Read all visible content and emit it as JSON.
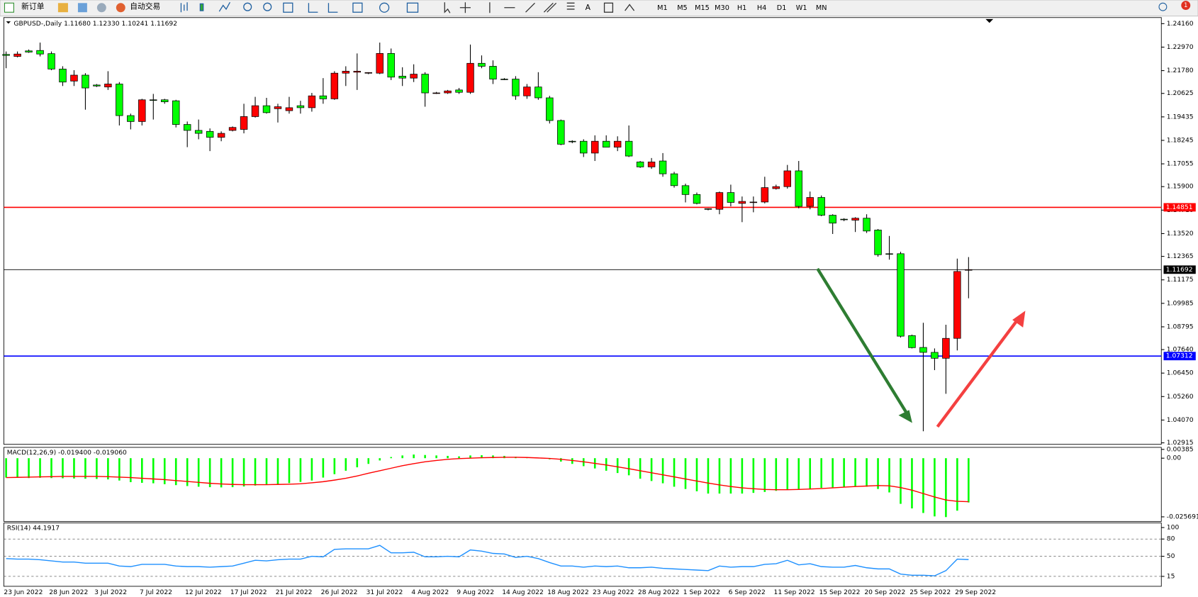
{
  "toolbar": {
    "new_order": "新订单",
    "auto_trading": "自动交易",
    "timeframes": [
      "M1",
      "M5",
      "M15",
      "M30",
      "H1",
      "H4",
      "D1",
      "W1",
      "MN"
    ],
    "badge": 1
  },
  "chart_data": [
    {
      "type": "candlestick",
      "title": "GBPUSD-,Daily 1.11680 1.12330 1.10241 1.11692",
      "categories": [
        "23 Jun 2022",
        null,
        null,
        null,
        "28 Jun 2022",
        null,
        null,
        null,
        "3 Jul 2022",
        null,
        null,
        null,
        "7 Jul 2022",
        null,
        null,
        null,
        "12 Jul 2022",
        null,
        null,
        null,
        "17 Jul 2022",
        null,
        null,
        null,
        "21 Jul 2022",
        null,
        null,
        null,
        "26 Jul 2022",
        null,
        null,
        null,
        "31 Jul 2022",
        null,
        null,
        null,
        "4 Aug 2022",
        null,
        null,
        null,
        "9 Aug 2022",
        null,
        null,
        null,
        "14 Aug 2022",
        null,
        null,
        null,
        "18 Aug 2022",
        null,
        null,
        null,
        "23 Aug 2022",
        null,
        null,
        null,
        "28 Aug 2022",
        null,
        null,
        null,
        "1 Sep 2022",
        null,
        null,
        null,
        "6 Sep 2022",
        null,
        null,
        null,
        "11 Sep 2022",
        null,
        null,
        null,
        "15 Sep 2022",
        null,
        null,
        null,
        "20 Sep 2022",
        null,
        null,
        null,
        "25 Sep 2022",
        null,
        null,
        null,
        "29 Sep 2022",
        null
      ],
      "open": [
        1.226,
        1.225,
        1.2278,
        1.228,
        1.2264,
        1.2186,
        1.2125,
        1.2155,
        1.2105,
        1.2095,
        1.211,
        1.195,
        1.192,
        1.203,
        1.203,
        1.2025,
        1.1905,
        1.1875,
        1.187,
        1.184,
        1.1875,
        1.188,
        1.1945,
        1.2,
        1.1985,
        1.1975,
        1.2,
        1.199,
        1.205,
        1.2035,
        1.2165,
        1.217,
        1.2165,
        1.2165,
        1.2265,
        1.215,
        1.214,
        1.216,
        1.2063,
        1.2065,
        1.208,
        1.2068,
        1.2215,
        1.22,
        1.2135,
        1.2135,
        1.205,
        1.2095,
        1.204,
        1.1925,
        1.182,
        1.182,
        1.176,
        1.182,
        1.179,
        1.182,
        1.1715,
        1.169,
        1.172,
        1.1655,
        1.1595,
        1.155,
        1.1478,
        1.1475,
        1.156,
        1.1505,
        1.151,
        1.1512,
        1.158,
        1.159,
        1.167,
        1.149,
        1.1535,
        1.1445,
        1.1425,
        1.142,
        1.143,
        1.137,
        1.125,
        1.125,
        1.0835,
        1.0775,
        1.075,
        1.072,
        1.0821,
        1.1168
      ],
      "high": [
        1.2275,
        1.2275,
        1.2285,
        1.232,
        1.2275,
        1.22,
        1.218,
        1.2165,
        1.211,
        1.2175,
        1.212,
        1.196,
        1.2035,
        1.206,
        1.2035,
        1.203,
        1.192,
        1.193,
        1.1885,
        1.187,
        1.1895,
        1.201,
        1.2045,
        1.204,
        1.201,
        1.2045,
        1.2025,
        1.2065,
        1.214,
        1.2175,
        1.22,
        1.2265,
        1.217,
        1.232,
        1.229,
        1.2195,
        1.221,
        1.217,
        1.207,
        1.208,
        1.209,
        1.231,
        1.2255,
        1.223,
        1.214,
        1.215,
        1.211,
        1.217,
        1.205,
        1.193,
        1.1825,
        1.183,
        1.185,
        1.185,
        1.1845,
        1.19,
        1.172,
        1.1735,
        1.176,
        1.1665,
        1.1605,
        1.156,
        1.148,
        1.1565,
        1.16,
        1.154,
        1.154,
        1.164,
        1.16,
        1.17,
        1.172,
        1.1565,
        1.1545,
        1.145,
        1.143,
        1.1435,
        1.145,
        1.1375,
        1.134,
        1.126,
        1.084,
        1.09,
        1.077,
        1.089,
        1.1225,
        1.1233
      ],
      "low": [
        1.219,
        1.2245,
        1.2268,
        1.225,
        1.218,
        1.21,
        1.21,
        1.198,
        1.2095,
        1.208,
        1.19,
        1.188,
        1.19,
        1.193,
        1.201,
        1.189,
        1.179,
        1.183,
        1.177,
        1.182,
        1.187,
        1.186,
        1.194,
        1.196,
        1.1915,
        1.196,
        1.196,
        1.197,
        1.201,
        1.203,
        1.21,
        1.208,
        1.216,
        1.216,
        1.213,
        1.21,
        1.212,
        1.1995,
        1.206,
        1.206,
        1.206,
        1.206,
        1.219,
        1.211,
        1.213,
        1.203,
        1.2035,
        1.203,
        1.191,
        1.18,
        1.181,
        1.174,
        1.172,
        1.179,
        1.177,
        1.174,
        1.1685,
        1.168,
        1.164,
        1.1585,
        1.151,
        1.15,
        1.147,
        1.145,
        1.149,
        1.141,
        1.146,
        1.1505,
        1.1575,
        1.158,
        1.148,
        1.1475,
        1.144,
        1.135,
        1.1415,
        1.136,
        1.1355,
        1.1235,
        1.122,
        1.0825,
        1.077,
        1.035,
        1.066,
        1.054,
        1.076,
        1.10241
      ],
      "close": [
        1.2255,
        1.2262,
        1.2272,
        1.2262,
        1.2186,
        1.212,
        1.2155,
        1.209,
        1.21,
        1.211,
        1.195,
        1.192,
        1.203,
        1.2028,
        1.202,
        1.1905,
        1.1875,
        1.186,
        1.184,
        1.186,
        1.189,
        1.1945,
        1.2,
        1.1965,
        1.1995,
        1.199,
        1.199,
        1.205,
        1.2035,
        1.2165,
        1.2175,
        1.2175,
        1.2168,
        1.2265,
        1.2145,
        1.214,
        1.216,
        1.2065,
        1.2065,
        1.2075,
        1.2068,
        1.2215,
        1.22,
        1.2135,
        1.2133,
        1.205,
        1.2095,
        1.204,
        1.1925,
        1.1805,
        1.1818,
        1.176,
        1.182,
        1.179,
        1.182,
        1.1745,
        1.169,
        1.1715,
        1.1655,
        1.1595,
        1.155,
        1.1505,
        1.1475,
        1.156,
        1.151,
        1.1515,
        1.1512,
        1.1585,
        1.159,
        1.167,
        1.149,
        1.1535,
        1.1445,
        1.1405,
        1.1423,
        1.143,
        1.1365,
        1.1245,
        1.1248,
        1.0832,
        1.0774,
        1.075,
        1.072,
        1.0821,
        1.116,
        1.11692
      ],
      "up_color": "#ff0000",
      "down_color": "#00ff00",
      "ylim": [
        1.0284,
        1.2443
      ],
      "yticks": [
        {
          "value": 1.2416,
          "label": "1.24160"
        },
        {
          "value": 1.2297,
          "label": "1.22970"
        },
        {
          "value": 1.2178,
          "label": "1.21780"
        },
        {
          "value": 1.20625,
          "label": "1.20625"
        },
        {
          "value": 1.19435,
          "label": "1.19435"
        },
        {
          "value": 1.18245,
          "label": "1.18245"
        },
        {
          "value": 1.17055,
          "label": "1.17055"
        },
        {
          "value": 1.159,
          "label": "1.15900"
        },
        {
          "value": 1.1471,
          "label": "1.14710"
        },
        {
          "value": 1.1352,
          "label": "1.13520"
        },
        {
          "value": 1.12365,
          "label": "1.12365"
        },
        {
          "value": 1.11175,
          "label": "1.11175"
        },
        {
          "value": 1.09985,
          "label": "1.09985"
        },
        {
          "value": 1.08795,
          "label": "1.08795"
        },
        {
          "value": 1.0764,
          "label": "1.07640"
        },
        {
          "value": 1.0645,
          "label": "1.06450"
        },
        {
          "value": 1.0526,
          "label": "1.05260"
        },
        {
          "value": 1.0407,
          "label": "1.04070"
        },
        {
          "value": 1.02915,
          "label": "1.02915"
        }
      ],
      "levels": [
        {
          "value": 1.14851,
          "label": "1.14851",
          "color": "#ff0000"
        },
        {
          "value": 1.07312,
          "label": "1.07312",
          "color": "#0000ff"
        }
      ],
      "last_price": {
        "value": 1.11692,
        "label": "1.11692",
        "color": "#000000"
      }
    },
    {
      "type": "bar",
      "title": "MACD(12,26,9) -0.019400 -0.019060",
      "values": [
        -0.0085,
        -0.0086,
        -0.0087,
        -0.0086,
        -0.0087,
        -0.0088,
        -0.0089,
        -0.009,
        -0.0091,
        -0.0093,
        -0.0098,
        -0.0105,
        -0.0108,
        -0.011,
        -0.0114,
        -0.0118,
        -0.0122,
        -0.0125,
        -0.0127,
        -0.0128,
        -0.0127,
        -0.0124,
        -0.012,
        -0.0117,
        -0.0113,
        -0.0109,
        -0.0104,
        -0.0098,
        -0.0085,
        -0.007,
        -0.0055,
        -0.004,
        -0.0025,
        -0.001,
        0.0005,
        0.0012,
        0.0016,
        0.0014,
        0.0012,
        0.001,
        0.0008,
        0.0012,
        0.0013,
        0.0012,
        0.001,
        0.0006,
        0.0004,
        0.0002,
        -0.0005,
        -0.0015,
        -0.0025,
        -0.0035,
        -0.0045,
        -0.0055,
        -0.0065,
        -0.0075,
        -0.009,
        -0.01,
        -0.011,
        -0.0125,
        -0.0135,
        -0.0145,
        -0.0155,
        -0.0155,
        -0.0155,
        -0.0155,
        -0.0152,
        -0.0148,
        -0.0143,
        -0.0138,
        -0.0135,
        -0.0133,
        -0.013,
        -0.0128,
        -0.0127,
        -0.0125,
        -0.0125,
        -0.0135,
        -0.015,
        -0.02,
        -0.022,
        -0.024,
        -0.0255,
        -0.0258,
        -0.023,
        -0.0194
      ],
      "color": "#00ff00",
      "signal_values": [
        -0.0085,
        -0.0084,
        -0.0083,
        -0.0082,
        -0.0081,
        -0.008,
        -0.008,
        -0.008,
        -0.008,
        -0.0081,
        -0.0083,
        -0.0085,
        -0.0088,
        -0.0091,
        -0.0094,
        -0.0098,
        -0.0102,
        -0.0106,
        -0.011,
        -0.0113,
        -0.0115,
        -0.0116,
        -0.0116,
        -0.0116,
        -0.0115,
        -0.0114,
        -0.0112,
        -0.0108,
        -0.0103,
        -0.0096,
        -0.0088,
        -0.0078,
        -0.0066,
        -0.0055,
        -0.0044,
        -0.0033,
        -0.0024,
        -0.0016,
        -0.001,
        -0.0005,
        -0.0002,
        0.0,
        0.0002,
        0.0003,
        0.0004,
        0.0004,
        0.0003,
        0.0001,
        -0.0001,
        -0.0005,
        -0.001,
        -0.0016,
        -0.0023,
        -0.003,
        -0.0038,
        -0.0046,
        -0.0055,
        -0.0064,
        -0.0073,
        -0.0082,
        -0.0091,
        -0.01,
        -0.0109,
        -0.0117,
        -0.0124,
        -0.013,
        -0.0134,
        -0.0137,
        -0.0138,
        -0.0138,
        -0.0137,
        -0.0135,
        -0.0133,
        -0.013,
        -0.0127,
        -0.0124,
        -0.0122,
        -0.012,
        -0.0121,
        -0.0129,
        -0.014,
        -0.0155,
        -0.017,
        -0.0183,
        -0.0189,
        -0.01906
      ],
      "signal_color": "#ff0000",
      "ylim": [
        -0.0277,
        0.0044
      ],
      "yticks": [
        0.00385,
        {
          "value": 0,
          "label": "0.00"
        },
        -0.025691
      ]
    },
    {
      "type": "line",
      "title": "RSI(14) 44.1917",
      "values": [
        46,
        45,
        45,
        44,
        42,
        40,
        40,
        38,
        38,
        38,
        33,
        32,
        36,
        36,
        36,
        33,
        32,
        32,
        31,
        32,
        33,
        38,
        43,
        42,
        44,
        45,
        45,
        50,
        49,
        62,
        63,
        63,
        63,
        69,
        56,
        56,
        57,
        49,
        49,
        50,
        49,
        61,
        59,
        55,
        54,
        48,
        50,
        46,
        39,
        33,
        33,
        31,
        33,
        32,
        33,
        30,
        30,
        31,
        29,
        28,
        27,
        26,
        25,
        33,
        31,
        32,
        32,
        36,
        37,
        43,
        35,
        37,
        32,
        31,
        31,
        34,
        30,
        28,
        28,
        19,
        17,
        17,
        16,
        25,
        45,
        44.1917
      ],
      "color": "#1e90ff",
      "ylim": [
        -2.3,
        108
      ],
      "yticks": [
        100,
        80,
        50,
        15
      ],
      "levels": [
        80,
        50,
        15
      ]
    }
  ]
}
